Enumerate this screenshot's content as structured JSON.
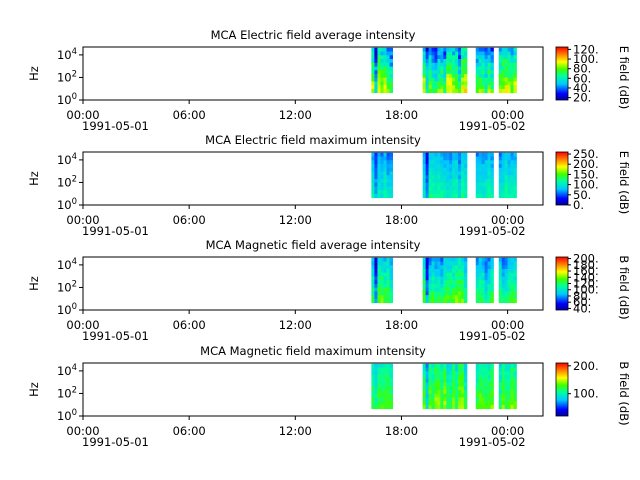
{
  "chart_data": [
    {
      "type": "heatmap",
      "title": "MCA  Electric field average intensity",
      "ylabel": "Hz",
      "y_ticks": [
        {
          "exp": "0"
        },
        {
          "exp": "2"
        },
        {
          "exp": "4"
        }
      ],
      "x_ticks": [
        "00:00",
        "06:00",
        "12:00",
        "18:00",
        "00:00"
      ],
      "x_hours": [
        0,
        6,
        12,
        18,
        24
      ],
      "date_start": "1991-05-01",
      "date_end": "1991-05-02",
      "xlim_hours": [
        0,
        26
      ],
      "ylim_log10": [
        0,
        4.7
      ],
      "colorbar": {
        "label": "E field (dB)",
        "range": [
          15,
          125
        ],
        "ticks": [
          "20.",
          "40.",
          "60.",
          "80.",
          "100.",
          "120."
        ],
        "tick_values": [
          20,
          40,
          60,
          80,
          100,
          120
        ]
      },
      "data_segments_hours": [
        [
          16.3,
          17.5
        ],
        [
          19.2,
          21.7
        ],
        [
          22.2,
          23.2
        ],
        [
          23.5,
          24.5
        ]
      ],
      "value_profile": {
        "low_freq": 85,
        "high_freq": 45
      }
    },
    {
      "type": "heatmap",
      "title": "MCA  Electric field maximum intensity",
      "ylabel": "Hz",
      "y_ticks": [
        {
          "exp": "0"
        },
        {
          "exp": "2"
        },
        {
          "exp": "4"
        }
      ],
      "x_ticks": [
        "00:00",
        "06:00",
        "12:00",
        "18:00",
        "00:00"
      ],
      "x_hours": [
        0,
        6,
        12,
        18,
        24
      ],
      "date_start": "1991-05-01",
      "date_end": "1991-05-02",
      "xlim_hours": [
        0,
        26
      ],
      "ylim_log10": [
        0,
        4.7
      ],
      "colorbar": {
        "label": "E field (dB)",
        "range": [
          0,
          260
        ],
        "ticks": [
          "0.",
          "50.",
          "100.",
          "150.",
          "200.",
          "250."
        ],
        "tick_values": [
          0,
          50,
          100,
          150,
          200,
          250
        ]
      },
      "data_segments_hours": [
        [
          16.3,
          17.5
        ],
        [
          19.2,
          21.7
        ],
        [
          22.2,
          23.2
        ],
        [
          23.5,
          24.5
        ]
      ],
      "value_profile": {
        "low_freq": 110,
        "high_freq": 70
      }
    },
    {
      "type": "heatmap",
      "title": "MCA  Magnetic field average intensity",
      "ylabel": "Hz",
      "y_ticks": [
        {
          "exp": "0"
        },
        {
          "exp": "2"
        },
        {
          "exp": "4"
        }
      ],
      "x_ticks": [
        "00:00",
        "06:00",
        "12:00",
        "18:00",
        "00:00"
      ],
      "x_hours": [
        0,
        6,
        12,
        18,
        24
      ],
      "date_start": "1991-05-01",
      "date_end": "1991-05-02",
      "xlim_hours": [
        0,
        26
      ],
      "ylim_log10": [
        0,
        4.7
      ],
      "colorbar": {
        "label": "B field (dB)",
        "range": [
          35,
          205
        ],
        "ticks": [
          "40.",
          "60.",
          "80.",
          "100.",
          "120.",
          "140.",
          "160.",
          "180.",
          "200."
        ],
        "tick_values": [
          40,
          60,
          80,
          100,
          120,
          140,
          160,
          180,
          200
        ]
      },
      "data_segments_hours": [
        [
          16.3,
          17.5
        ],
        [
          19.2,
          21.7
        ],
        [
          22.2,
          23.2
        ],
        [
          23.5,
          24.5
        ]
      ],
      "value_profile": {
        "low_freq": 125,
        "high_freq": 85
      }
    },
    {
      "type": "heatmap",
      "title": "MCA  Magnetic field maximum intensity",
      "ylabel": "Hz",
      "y_ticks": [
        {
          "exp": "0"
        },
        {
          "exp": "2"
        },
        {
          "exp": "4"
        }
      ],
      "x_ticks": [
        "00:00",
        "06:00",
        "12:00",
        "18:00",
        "00:00"
      ],
      "x_hours": [
        0,
        6,
        12,
        18,
        24
      ],
      "date_start": "1991-05-01",
      "date_end": "1991-05-02",
      "xlim_hours": [
        0,
        26
      ],
      "ylim_log10": [
        0,
        4.7
      ],
      "colorbar": {
        "label": "B field (dB)",
        "range": [
          20,
          210
        ],
        "ticks": [
          "100.",
          "200."
        ],
        "tick_values": [
          100,
          200
        ]
      },
      "data_segments_hours": [
        [
          16.3,
          17.5
        ],
        [
          19.2,
          21.7
        ],
        [
          22.2,
          23.2
        ],
        [
          23.5,
          24.5
        ]
      ],
      "value_profile": {
        "low_freq": 130,
        "high_freq": 100
      }
    }
  ]
}
